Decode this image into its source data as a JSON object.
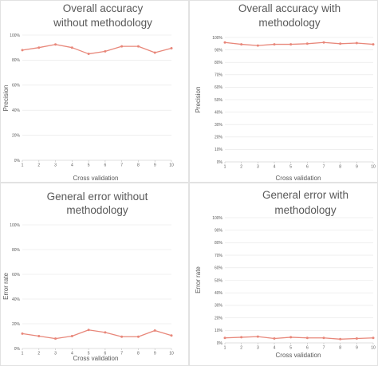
{
  "chart_data": [
    {
      "type": "line",
      "title_lines": [
        "Overall accuracy",
        "without methodology"
      ],
      "xlabel": "Cross validation",
      "ylabel": "Precision",
      "x": [
        1,
        2,
        3,
        4,
        5,
        6,
        7,
        8,
        9,
        10
      ],
      "y_ticks": [
        "0%",
        "20%",
        "40%",
        "60%",
        "80%",
        "100%"
      ],
      "ylim": [
        0,
        100
      ],
      "series": [
        {
          "values": [
            88,
            90,
            92.5,
            90,
            85,
            87,
            91,
            91,
            86,
            89.5
          ]
        }
      ],
      "line_color": "#E8877A"
    },
    {
      "type": "line",
      "title_lines": [
        "Overall accuracy with",
        "methodology"
      ],
      "xlabel": "Cross validation",
      "ylabel": "Precision",
      "x": [
        1,
        2,
        3,
        4,
        5,
        6,
        7,
        8,
        9,
        10
      ],
      "y_ticks": [
        "0%",
        "10%",
        "20%",
        "30%",
        "40%",
        "50%",
        "60%",
        "70%",
        "80%",
        "90%",
        "100%"
      ],
      "ylim": [
        0,
        100
      ],
      "series": [
        {
          "values": [
            96,
            94.5,
            93.5,
            94.5,
            94.5,
            95,
            96,
            95,
            95.5,
            94.5
          ]
        }
      ],
      "line_color": "#E8877A"
    },
    {
      "type": "line",
      "title_lines": [
        "General error without",
        "methodology"
      ],
      "xlabel": "Cross validation",
      "ylabel": "Error rate",
      "x": [
        1,
        2,
        3,
        4,
        5,
        6,
        7,
        8,
        9,
        10
      ],
      "y_ticks": [
        "0%",
        "20%",
        "40%",
        "60%",
        "80%",
        "100%"
      ],
      "ylim": [
        0,
        100
      ],
      "series": [
        {
          "values": [
            12,
            10,
            8,
            10,
            15,
            13,
            9.5,
            9.5,
            14.5,
            10.5
          ]
        }
      ],
      "line_color": "#E8877A"
    },
    {
      "type": "line",
      "title_lines": [
        "General error with",
        "methodology"
      ],
      "xlabel": "Cross validation",
      "ylabel": "Error rate",
      "x": [
        1,
        2,
        3,
        4,
        5,
        6,
        7,
        8,
        9,
        10
      ],
      "y_ticks": [
        "0%",
        "10%",
        "20%",
        "30%",
        "40%",
        "50%",
        "60%",
        "70%",
        "80%",
        "90%",
        "100%"
      ],
      "ylim": [
        0,
        100
      ],
      "series": [
        {
          "values": [
            4,
            4.5,
            5,
            3.5,
            4.5,
            4,
            4,
            3,
            3.5,
            4
          ]
        }
      ],
      "line_color": "#E8877A"
    }
  ]
}
